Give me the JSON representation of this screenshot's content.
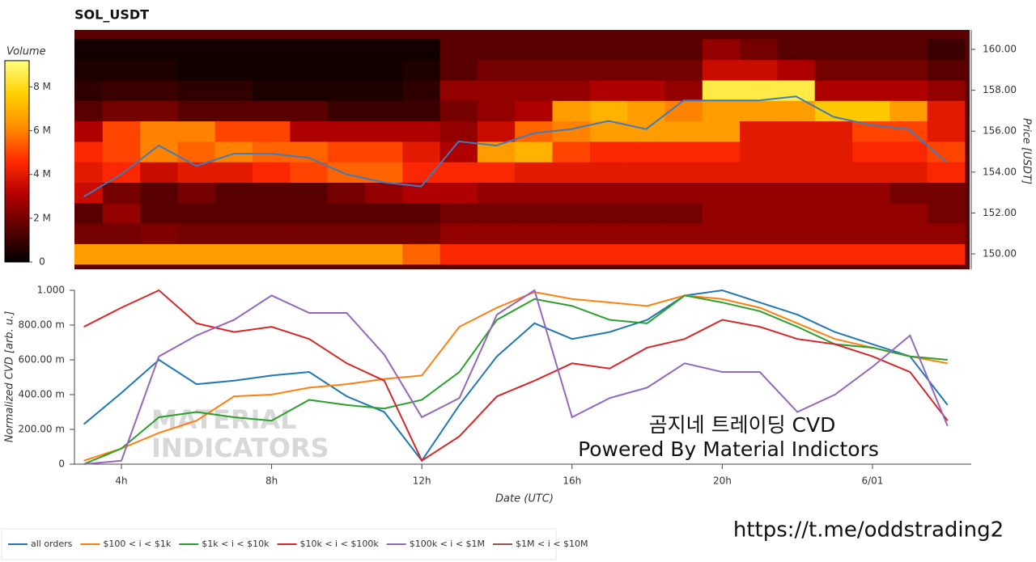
{
  "chart_data": [
    {
      "type": "heatmap",
      "title": "SOL_USDT",
      "x": [
        3,
        4,
        5,
        6,
        7,
        8,
        9,
        10,
        11,
        12,
        13,
        14,
        15,
        16,
        17,
        18,
        19,
        20,
        21,
        22,
        23,
        24,
        25,
        26
      ],
      "y": [
        150,
        151,
        152,
        153,
        154,
        155,
        156,
        157,
        158,
        159,
        160
      ],
      "z": [
        [
          6.5,
          6.5,
          6.5,
          6.5,
          6.5,
          6.5,
          6.5,
          6.5,
          6.5,
          5.5,
          4.5,
          4.5,
          4.5,
          4.5,
          4.5,
          4.5,
          4.5,
          4.5,
          4.5,
          4.5,
          4.5,
          4.5,
          4.5,
          4.5
        ],
        [
          2,
          2,
          2.2,
          2,
          2,
          2,
          2,
          2,
          2,
          2,
          2.5,
          2.5,
          2.5,
          2.5,
          2.5,
          2.5,
          2.5,
          2.5,
          2.5,
          2.5,
          2.5,
          2.5,
          2.5,
          2.5
        ],
        [
          1.5,
          2.5,
          1.5,
          1.5,
          1.5,
          1.5,
          1.5,
          1.5,
          1.5,
          1.5,
          2,
          2,
          2,
          2,
          2,
          2,
          2,
          2.5,
          2.5,
          2.5,
          2.5,
          2.5,
          2.5,
          2
        ],
        [
          3.5,
          2,
          1.5,
          2,
          1.5,
          1.5,
          1.5,
          2,
          2.5,
          3,
          3,
          2.5,
          2.5,
          2.5,
          2.5,
          2.5,
          2.5,
          2.5,
          2.5,
          2.5,
          2.5,
          2.5,
          2,
          2
        ],
        [
          4,
          4.5,
          3.5,
          4,
          4,
          4.5,
          5,
          5.5,
          5.5,
          4.5,
          4.5,
          4.5,
          4,
          4,
          4,
          4,
          4,
          4,
          4,
          4,
          4,
          4,
          4,
          4.5
        ],
        [
          4.5,
          5,
          6,
          5.5,
          6,
          5.5,
          5.5,
          5,
          5,
          4,
          3,
          6.5,
          7,
          5,
          4.5,
          4.5,
          4.5,
          4.5,
          4,
          4,
          4,
          4.5,
          4.5,
          5
        ],
        [
          3,
          5,
          6,
          6,
          5,
          5,
          3,
          3,
          3,
          3,
          2.5,
          3.5,
          5.5,
          6,
          6.5,
          6.5,
          6.5,
          6.5,
          4,
          4,
          4,
          5,
          5,
          4
        ],
        [
          1.5,
          2,
          2,
          1.5,
          1.5,
          1.5,
          1.5,
          1,
          1,
          1,
          2,
          2.5,
          3,
          6.5,
          7,
          6.5,
          6,
          6.5,
          6.5,
          6.5,
          7.5,
          7.5,
          6.5,
          4
        ],
        [
          0.8,
          1,
          1,
          0.8,
          0.8,
          0.5,
          0.5,
          0.5,
          0.5,
          0.8,
          2.5,
          2.5,
          2.5,
          2.5,
          3,
          3,
          2.5,
          8.5,
          8.5,
          8.5,
          3,
          3,
          3,
          2.5
        ],
        [
          0.5,
          0.5,
          0.5,
          0.3,
          0.3,
          0.3,
          0.3,
          0.3,
          0.3,
          0.5,
          1.5,
          2,
          2,
          2,
          2,
          2,
          2,
          3.5,
          3.5,
          3,
          2,
          2,
          2,
          1.5
        ],
        [
          0.3,
          0.3,
          0.3,
          0.3,
          0.3,
          0.3,
          0.3,
          0.3,
          0.3,
          0.3,
          1.5,
          1.5,
          1.5,
          1.5,
          1.5,
          1.5,
          1.5,
          2.5,
          2,
          1.5,
          1.5,
          1.5,
          1.5,
          1
        ]
      ],
      "colormap": [
        "#000000",
        "#5a0000",
        "#b30000",
        "#ff2a00",
        "#ff8c00",
        "#ffd000",
        "#ffff80"
      ],
      "z_label": "Volume",
      "zlim": [
        0,
        9.2
      ],
      "zticks": [
        0,
        {
          "value": 2,
          "label": "2 M"
        },
        {
          "value": 4,
          "label": "4 M"
        },
        {
          "value": 6,
          "label": "6 M"
        },
        {
          "value": 8,
          "label": "8 M"
        }
      ],
      "price": {
        "color": "#3b7dbf",
        "values": [
          152.8,
          153.9,
          155.3,
          154.3,
          154.9,
          154.9,
          154.7,
          153.9,
          153.5,
          153.3,
          155.5,
          155.3,
          155.9,
          156.1,
          156.5,
          156.1,
          157.5,
          157.5,
          157.5,
          157.7,
          156.7,
          156.3,
          156.1,
          154.5
        ]
      },
      "ylabel": "Price [USDT]",
      "xlim": [
        2.75,
        26.63
      ],
      "ylim": [
        149.25,
        160.95
      ],
      "yticks": [
        {
          "value": 150,
          "label": "150.00"
        },
        {
          "value": 152,
          "label": "152.00"
        },
        {
          "value": 154,
          "label": "154.00"
        },
        {
          "value": 156,
          "label": "156.00"
        },
        {
          "value": 158,
          "label": "158.00"
        },
        {
          "value": 160,
          "label": "160.00"
        }
      ]
    },
    {
      "type": "line",
      "x": [
        3,
        4,
        5,
        6,
        7,
        8,
        9,
        10,
        11,
        12,
        13,
        14,
        15,
        16,
        17,
        18,
        19,
        20,
        21,
        22,
        23,
        24,
        25,
        26
      ],
      "series": [
        {
          "name": "all orders",
          "color": "#1f77b4",
          "values": [
            0.23,
            0.41,
            0.6,
            0.46,
            0.48,
            0.51,
            0.53,
            0.39,
            0.3,
            0.02,
            0.34,
            0.62,
            0.81,
            0.72,
            0.76,
            0.83,
            0.97,
            1.0,
            0.93,
            0.86,
            0.76,
            0.69,
            0.62,
            0.34
          ]
        },
        {
          "name": "$100 < i < $1k",
          "color": "#ff7f0e",
          "values": [
            0.02,
            0.09,
            0.18,
            0.25,
            0.39,
            0.4,
            0.44,
            0.46,
            0.49,
            0.51,
            0.79,
            0.9,
            0.99,
            0.95,
            0.93,
            0.91,
            0.97,
            0.95,
            0.9,
            0.81,
            0.72,
            0.67,
            0.62,
            0.58
          ]
        },
        {
          "name": "$1k < i < $10k",
          "color": "#2ca02c",
          "values": [
            0.0,
            0.09,
            0.27,
            0.3,
            0.27,
            0.25,
            0.37,
            0.34,
            0.32,
            0.37,
            0.53,
            0.83,
            0.95,
            0.91,
            0.83,
            0.81,
            0.97,
            0.93,
            0.88,
            0.79,
            0.69,
            0.67,
            0.62,
            0.6
          ]
        },
        {
          "name": "$10k < i < $100k",
          "color": "#d62728",
          "values": [
            0.79,
            0.9,
            1.0,
            0.81,
            0.76,
            0.79,
            0.72,
            0.58,
            0.48,
            0.02,
            0.16,
            0.39,
            0.48,
            0.58,
            0.55,
            0.67,
            0.72,
            0.83,
            0.79,
            0.72,
            0.69,
            0.62,
            0.53,
            0.25
          ]
        },
        {
          "name": "$100k < i < $1M",
          "color": "#9467bd",
          "values": [
            0.0,
            0.02,
            0.62,
            0.74,
            0.83,
            0.97,
            0.87,
            0.87,
            0.63,
            0.27,
            0.38,
            0.86,
            1.0,
            0.27,
            0.38,
            0.44,
            0.58,
            0.53,
            0.53,
            0.3,
            0.4,
            0.56,
            0.74,
            0.22
          ]
        },
        {
          "name": "$1M < i < $10M",
          "color": "#8c564b",
          "values": [
            null,
            null,
            null,
            null,
            null,
            null,
            null,
            null,
            null,
            null,
            null,
            null,
            null,
            null,
            null,
            null,
            null,
            null,
            null,
            null,
            null,
            null,
            null,
            null
          ]
        }
      ],
      "xlim": [
        2.75,
        26.63
      ],
      "ylim": [
        0,
        1
      ],
      "xticks": [
        {
          "value": 4,
          "label": "4h"
        },
        {
          "value": 8,
          "label": "8h"
        },
        {
          "value": 12,
          "label": "12h"
        },
        {
          "value": 16,
          "label": "16h"
        },
        {
          "value": 20,
          "label": "20h"
        },
        {
          "value": 24,
          "label": "6/01"
        }
      ],
      "yticks": [
        0,
        {
          "value": 0.2,
          "label": "200.00 m"
        },
        {
          "value": 0.4,
          "label": "400.00 m"
        },
        {
          "value": 0.6,
          "label": "600.00 m"
        },
        {
          "value": 0.8,
          "label": "800.00 m"
        },
        {
          "value": 1,
          "label": "1.000"
        }
      ],
      "xlabel": "Date (UTC)",
      "ylabel": "Normalized CVD [arb. u.]",
      "legend": "bottom-left",
      "annotations": [
        "MATERIAL",
        "INDICATORS",
        "곰지네 트레이딩 CVD",
        "Powered By Material Indictors"
      ]
    }
  ],
  "footer": "https://t.me/oddstrading2"
}
